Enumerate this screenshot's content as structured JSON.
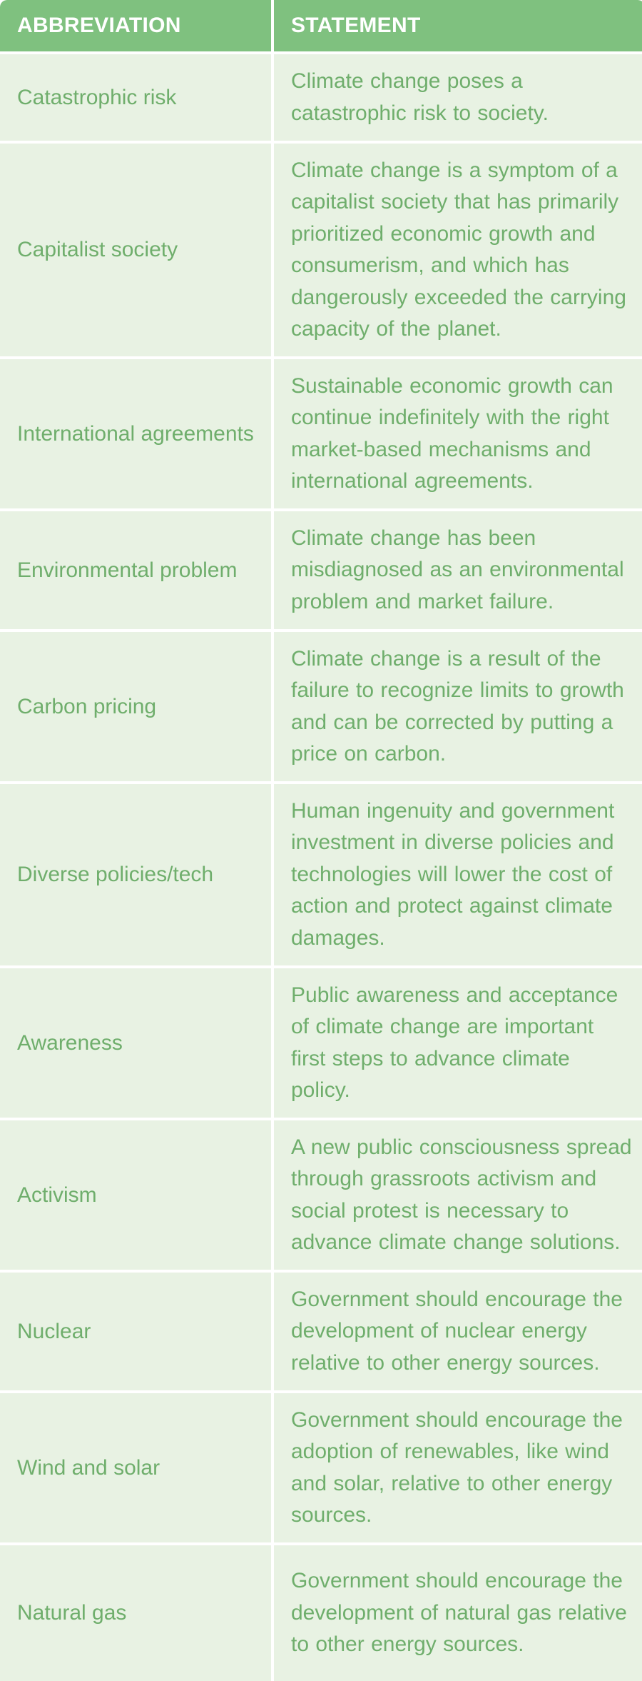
{
  "header": {
    "abbreviation": "ABBREVIATION",
    "statement": "STATEMENT"
  },
  "rows": [
    {
      "abbreviation": "Catastrophic risk",
      "statement": "Climate change poses a catastrophic risk to society."
    },
    {
      "abbreviation": "Capitalist society",
      "statement": "Climate change is a symptom of a capitalist society that has primarily prioritized economic growth and consumerism, and which has dangerously exceeded the carrying capacity of the planet."
    },
    {
      "abbreviation": "International agreements",
      "statement": "Sustainable economic growth can continue indefinitely with the right market-based mechanisms and international agreements."
    },
    {
      "abbreviation": "Environmental problem",
      "statement": "Climate change has been misdiagnosed as an environmental problem and market failure."
    },
    {
      "abbreviation": "Carbon pricing",
      "statement": "Climate change is a result of the failure to recognize limits to growth and can be corrected by putting a price on carbon."
    },
    {
      "abbreviation": "Diverse policies/tech",
      "statement": "Human ingenuity and government investment in diverse policies and technologies will lower the cost of action and protect against climate damages."
    },
    {
      "abbreviation": "Awareness",
      "statement": "Public awareness and acceptance of climate change are important first steps to advance climate policy."
    },
    {
      "abbreviation": "Activism",
      "statement": "A new public consciousness spread through grassroots activism and social protest is necessary to advance climate change solutions."
    },
    {
      "abbreviation": "Nuclear",
      "statement": "Government should encourage the development of nuclear energy relative to other energy sources."
    },
    {
      "abbreviation": "Wind and solar",
      "statement": "Government should encourage the adoption of renewables, like wind and solar, relative to other energy sources."
    },
    {
      "abbreviation": "Natural gas",
      "statement": "Government should encourage the development of natural gas relative to other energy sources."
    }
  ],
  "colors": {
    "header_bg": "#7fc17f",
    "header_text": "#ffffff",
    "cell_bg": "#e8f2e3",
    "cell_text": "#6fae6c",
    "divider": "#ffffff"
  }
}
